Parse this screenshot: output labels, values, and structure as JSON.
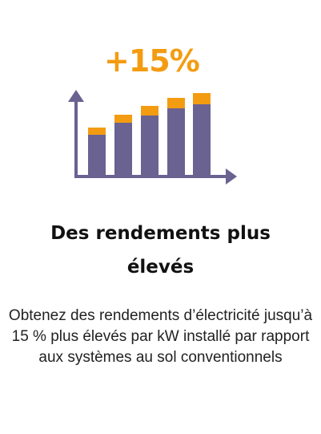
{
  "headline": "+15%",
  "title": "Des rendements plus élevés",
  "description": "Obtenez des rendements d’électricité jusqu’à 15 % plus élevés par kW installé par rapport aux systèmes au sol conventionnels",
  "colors": {
    "accent": "#f39c12",
    "bar": "#6a6291",
    "axis": "#6a6291",
    "text": "#111111"
  },
  "icons": {
    "chart": "growth-bar-chart-icon"
  }
}
